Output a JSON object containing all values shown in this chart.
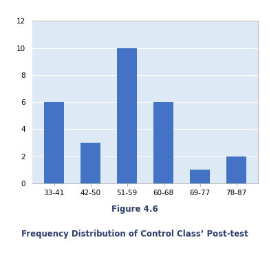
{
  "categories": [
    "33-41",
    "42-50",
    "51-59",
    "60-68",
    "69-77",
    "78-87"
  ],
  "values": [
    6,
    3,
    10,
    6,
    1,
    2
  ],
  "bar_color": "#4472C4",
  "ylim": [
    0,
    12
  ],
  "yticks": [
    0,
    2,
    4,
    6,
    8,
    10,
    12
  ],
  "title": "Figure 4.6",
  "subtitle": "Frequency Distribution of Control Class’ Post-test",
  "title_fontsize": 8.5,
  "subtitle_fontsize": 8.5,
  "tick_fontsize": 7.5,
  "plot_bg_color": "#DDEAF6",
  "grid_color": "#FFFFFF",
  "fig_bg_color": "#FFFFFF",
  "caption_bg_color": "#C8E8E0"
}
